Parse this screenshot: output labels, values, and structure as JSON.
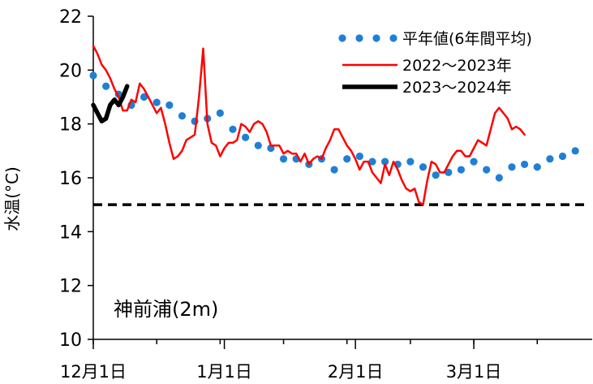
{
  "chart_data": {
    "type": "line",
    "ylabel": "水温(°C)",
    "ylim": [
      10,
      22
    ],
    "yticks": [
      10,
      12,
      14,
      16,
      18,
      20,
      22
    ],
    "x_domain_days": [
      0,
      118
    ],
    "x_ticks": [
      {
        "day": 0,
        "label": "12月1日"
      },
      {
        "day": 31,
        "label": "1月1日"
      },
      {
        "day": 62,
        "label": "2月1日"
      },
      {
        "day": 90,
        "label": "3月1日"
      }
    ],
    "annotation": "神前浦(2m)",
    "grid": false,
    "legend_position": "top-right",
    "threshold": {
      "value": 15,
      "color": "#000000",
      "style": "dashed"
    },
    "series": [
      {
        "name": "平年値(6年間平均)",
        "style": "dots",
        "color": "#1f7fd4",
        "points": [
          [
            0,
            19.8
          ],
          [
            3,
            19.4
          ],
          [
            6,
            19.1
          ],
          [
            9,
            18.7
          ],
          [
            12,
            19.0
          ],
          [
            15,
            18.8
          ],
          [
            18,
            18.7
          ],
          [
            21,
            18.3
          ],
          [
            24,
            18.1
          ],
          [
            27,
            18.2
          ],
          [
            30,
            18.4
          ],
          [
            33,
            17.8
          ],
          [
            36,
            17.5
          ],
          [
            39,
            17.2
          ],
          [
            42,
            17.1
          ],
          [
            45,
            16.7
          ],
          [
            48,
            16.7
          ],
          [
            51,
            16.5
          ],
          [
            54,
            16.7
          ],
          [
            57,
            16.3
          ],
          [
            60,
            16.7
          ],
          [
            63,
            16.8
          ],
          [
            66,
            16.6
          ],
          [
            69,
            16.6
          ],
          [
            72,
            16.5
          ],
          [
            75,
            16.6
          ],
          [
            78,
            16.4
          ],
          [
            81,
            16.1
          ],
          [
            84,
            16.2
          ],
          [
            87,
            16.3
          ],
          [
            90,
            16.6
          ],
          [
            93,
            16.3
          ],
          [
            96,
            16.0
          ],
          [
            99,
            16.4
          ],
          [
            102,
            16.5
          ],
          [
            105,
            16.4
          ],
          [
            108,
            16.7
          ],
          [
            111,
            16.8
          ],
          [
            114,
            17.0
          ]
        ]
      },
      {
        "name": "2022～2023年",
        "style": "line",
        "color": "#ff0000",
        "points": [
          [
            0,
            20.9
          ],
          [
            1,
            20.6
          ],
          [
            2,
            20.2
          ],
          [
            3,
            20.0
          ],
          [
            4,
            19.7
          ],
          [
            5,
            19.3
          ],
          [
            6,
            19.0
          ],
          [
            7,
            18.5
          ],
          [
            8,
            18.5
          ],
          [
            9,
            18.9
          ],
          [
            10,
            18.8
          ],
          [
            11,
            19.5
          ],
          [
            12,
            19.3
          ],
          [
            13,
            19.0
          ],
          [
            14,
            18.7
          ],
          [
            15,
            18.4
          ],
          [
            16,
            18.6
          ],
          [
            17,
            18.0
          ],
          [
            18,
            17.3
          ],
          [
            19,
            16.7
          ],
          [
            20,
            16.8
          ],
          [
            21,
            17.0
          ],
          [
            22,
            17.4
          ],
          [
            23,
            17.5
          ],
          [
            24,
            17.6
          ],
          [
            25,
            19.0
          ],
          [
            26,
            20.8
          ],
          [
            27,
            18.0
          ],
          [
            28,
            17.3
          ],
          [
            29,
            17.2
          ],
          [
            30,
            16.8
          ],
          [
            31,
            17.1
          ],
          [
            32,
            17.3
          ],
          [
            33,
            17.3
          ],
          [
            34,
            17.4
          ],
          [
            35,
            18.0
          ],
          [
            36,
            17.9
          ],
          [
            37,
            17.7
          ],
          [
            38,
            18.0
          ],
          [
            39,
            18.1
          ],
          [
            40,
            18.0
          ],
          [
            41,
            17.7
          ],
          [
            42,
            17.2
          ],
          [
            43,
            17.2
          ],
          [
            44,
            17.2
          ],
          [
            45,
            16.9
          ],
          [
            46,
            17.0
          ],
          [
            47,
            16.9
          ],
          [
            48,
            16.9
          ],
          [
            49,
            16.6
          ],
          [
            50,
            16.9
          ],
          [
            51,
            16.5
          ],
          [
            52,
            16.7
          ],
          [
            53,
            16.8
          ],
          [
            54,
            16.7
          ],
          [
            55,
            17.1
          ],
          [
            56,
            17.4
          ],
          [
            57,
            17.8
          ],
          [
            58,
            17.8
          ],
          [
            59,
            17.5
          ],
          [
            60,
            17.2
          ],
          [
            61,
            17.0
          ],
          [
            62,
            16.7
          ],
          [
            63,
            16.3
          ],
          [
            64,
            16.6
          ],
          [
            65,
            16.6
          ],
          [
            66,
            16.2
          ],
          [
            67,
            16.0
          ],
          [
            68,
            15.8
          ],
          [
            69,
            16.5
          ],
          [
            70,
            16.1
          ],
          [
            71,
            16.6
          ],
          [
            72,
            16.3
          ],
          [
            73,
            15.9
          ],
          [
            74,
            15.6
          ],
          [
            75,
            15.5
          ],
          [
            76,
            15.6
          ],
          [
            77,
            15.1
          ],
          [
            78,
            15.0
          ],
          [
            79,
            15.9
          ],
          [
            80,
            16.6
          ],
          [
            81,
            16.5
          ],
          [
            82,
            16.2
          ],
          [
            83,
            16.2
          ],
          [
            84,
            16.5
          ],
          [
            85,
            16.8
          ],
          [
            86,
            17.0
          ],
          [
            87,
            17.0
          ],
          [
            88,
            16.8
          ],
          [
            89,
            16.8
          ],
          [
            90,
            17.1
          ],
          [
            91,
            17.4
          ],
          [
            92,
            17.3
          ],
          [
            93,
            17.2
          ],
          [
            94,
            17.8
          ],
          [
            95,
            18.4
          ],
          [
            96,
            18.6
          ],
          [
            97,
            18.4
          ],
          [
            98,
            18.2
          ],
          [
            99,
            17.8
          ],
          [
            100,
            17.9
          ],
          [
            101,
            17.8
          ],
          [
            102,
            17.6
          ]
        ]
      },
      {
        "name": "2023～2024年",
        "style": "line",
        "color": "#000000",
        "points": [
          [
            0,
            18.7
          ],
          [
            1,
            18.4
          ],
          [
            2,
            18.1
          ],
          [
            3,
            18.2
          ],
          [
            4,
            18.7
          ],
          [
            5,
            18.9
          ],
          [
            6,
            18.7
          ],
          [
            7,
            19.0
          ],
          [
            8,
            19.4
          ]
        ]
      }
    ]
  }
}
